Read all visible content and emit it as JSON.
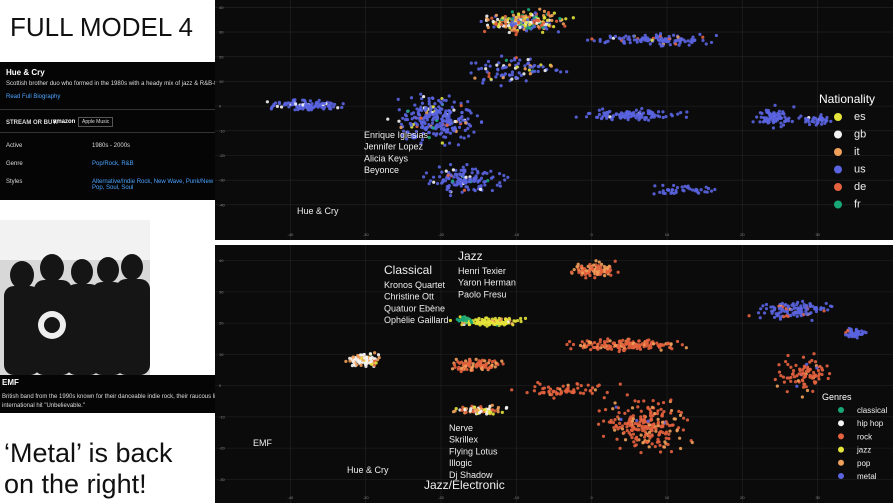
{
  "slide": {
    "title": "FULL MODEL 4",
    "caption_lines": [
      "‘Metal’ is back",
      "on the right!"
    ]
  },
  "card1": {
    "name": "Hue & Cry",
    "bio": "Scottish brother duo who formed in the 1980s with a heady mix of jazz & R&B-tinged pop.",
    "link": "Read Full Biography",
    "stream_label": "STREAM OR BUY:",
    "stores": [
      "amazon",
      "Apple Music"
    ],
    "facts": [
      [
        "Active",
        "1980s - 2000s"
      ],
      [
        "Genre",
        "Pop/Rock, R&B"
      ],
      [
        "Styles",
        "Alternative/Indie Rock, New Wave, Punk/New Wave, Sophisti-Pop, Soul, Soul"
      ]
    ]
  },
  "card2": {
    "name": "EMF",
    "bio": "British band from the 1990s known for their danceable indie rock, their raucous live shows, and for the international hit \"Unbelievable.\""
  },
  "plots": [
    {
      "legend_title": "Nationality",
      "series": [
        {
          "name": "es",
          "color": "#e4e43a"
        },
        {
          "name": "gb",
          "color": "#f4f4f4"
        },
        {
          "name": "it",
          "color": "#f0a05a"
        },
        {
          "name": "us",
          "color": "#5a64e0"
        },
        {
          "name": "de",
          "color": "#e4623e"
        },
        {
          "name": "fr",
          "color": "#18a878"
        }
      ],
      "xlim": [
        -50,
        40
      ],
      "xticks": [
        -40,
        -30,
        -20,
        -10,
        0,
        10,
        20,
        30
      ],
      "ylim": [
        43,
        -51
      ],
      "yticks": [
        40,
        30,
        20,
        10,
        0,
        -10,
        -20,
        -30,
        -40
      ],
      "annotations": [
        {
          "lines": [
            "Enrique Iglesias",
            "Jennifer Lopez",
            "Alicia Keys",
            "Beyonce"
          ]
        },
        {
          "lines": [
            "Hue & Cry"
          ]
        }
      ]
    },
    {
      "legend_title": "Genres",
      "series": [
        {
          "name": "classical",
          "color": "#18a878"
        },
        {
          "name": "hip hop",
          "color": "#f4f4f4"
        },
        {
          "name": "rock",
          "color": "#e4623e"
        },
        {
          "name": "jazz",
          "color": "#e4e43a"
        },
        {
          "name": "pop",
          "color": "#f0a05a"
        },
        {
          "name": "metal",
          "color": "#5a64e0"
        }
      ],
      "xlim": [
        -50,
        40
      ],
      "xticks": [
        -40,
        -30,
        -20,
        -10,
        0,
        10,
        20,
        30
      ],
      "ylim": [
        45,
        -35
      ],
      "yticks": [
        40,
        30,
        20,
        10,
        0,
        -10,
        -20,
        -30
      ],
      "annotations": [
        {
          "title": "Classical",
          "lines": [
            "Kronos Quartet",
            "Christine Ott",
            "Quatuor Ebène",
            "Ophélie Gaillard"
          ]
        },
        {
          "title": "Jazz",
          "lines": [
            "Henri Texier",
            "Yaron Herman",
            "Paolo Fresu"
          ]
        },
        {
          "lines": [
            "EMF"
          ]
        },
        {
          "lines": [
            "Hue & Cry"
          ]
        },
        {
          "lines": [
            "Nerve",
            "Skrillex",
            "Flying Lotus",
            "Illogic",
            "Dj Shadow"
          ]
        },
        {
          "title": "Jazz/Electronic",
          "lines": []
        }
      ]
    }
  ]
}
